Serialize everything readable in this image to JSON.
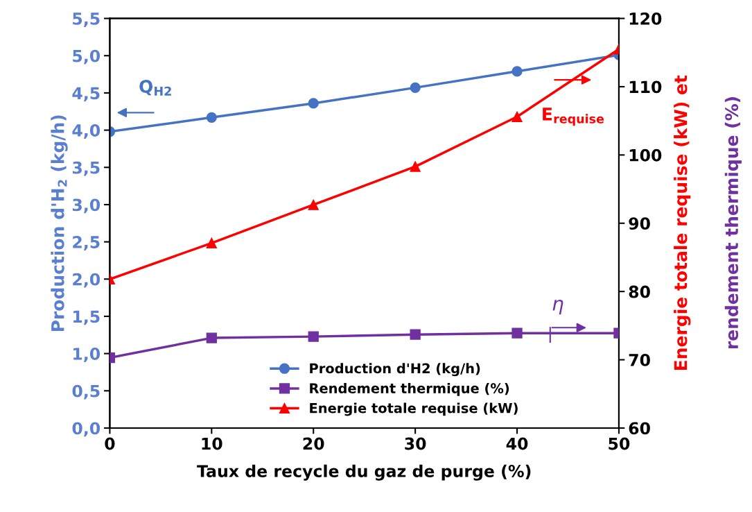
{
  "chart_data": {
    "type": "line",
    "xlabel": "Taux de recycle du gaz de purge (%)",
    "ylabel": "Production d'H$_{2}$ (kg/h)",
    "y2label": "Energie totale requise (kW) et",
    "x": [
      0,
      10,
      20,
      30,
      40,
      50
    ],
    "series": [
      {
        "name": "Production d'H2 (kg/h)",
        "color": "#4472c4",
        "values": [
          3.98,
          4.17,
          4.36,
          4.57,
          4.79,
          5.01
        ],
        "marker": "circle"
      },
      {
        "name": "Rendement thermique (%)",
        "color": "#7030a0",
        "values": [
          70.3,
          73.2,
          73.4,
          73.7,
          73.9,
          73.9
        ],
        "marker": "square",
        "axis": "y2"
      },
      {
        "name": "Energie totale requise (kW)",
        "color": "#ff0000",
        "values": [
          81.8,
          87.1,
          92.7,
          98.3,
          105.6,
          115.5
        ],
        "marker": "triangle",
        "axis": "y2"
      }
    ],
    "annotations": [
      "Q$_{H2}$",
      "E$_{requise}$",
      "η",
      "rendement thermique (%)"
    ],
    "xlim": [
      0,
      50
    ],
    "xticks": [
      0,
      10,
      20,
      30,
      40,
      50
    ],
    "ylim": [
      0,
      5.5
    ],
    "yticks": [
      {
        "value": 0,
        "label": "0,0"
      },
      {
        "value": 0.5,
        "label": "0,5"
      },
      {
        "value": 1,
        "label": "1,0"
      },
      {
        "value": 1.5,
        "label": "1,5"
      },
      {
        "value": 2,
        "label": "2,0"
      },
      {
        "value": 2.5,
        "label": "2,5"
      },
      {
        "value": 3,
        "label": "3,0"
      },
      {
        "value": 3.5,
        "label": "3,5"
      },
      {
        "value": 4,
        "label": "4,0"
      },
      {
        "value": 4.5,
        "label": "4,5"
      },
      {
        "value": 5,
        "label": "5,0"
      },
      {
        "value": 5.5,
        "label": "5,5"
      }
    ],
    "y2lim": [
      60,
      120
    ],
    "y2ticks": [
      60,
      70,
      80,
      90,
      100,
      110,
      120
    ],
    "legend": "bottom",
    "grid": false,
    "line_style": "solid"
  }
}
